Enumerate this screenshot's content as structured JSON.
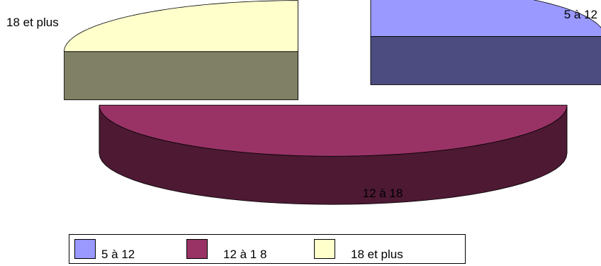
{
  "chart_data": {
    "type": "pie",
    "style": "3d-exploded",
    "categories": [
      "5 à 12",
      "12 à 18",
      "18 et plus"
    ],
    "values": [
      25,
      50,
      25
    ],
    "colors": {
      "top": [
        "#9999ff",
        "#993366",
        "#ffffcc"
      ],
      "side": [
        "#4c4c80",
        "#4d1933",
        "#808066"
      ]
    },
    "slice_labels": [
      "5 à 12",
      "12 à 18",
      "18 et plus"
    ],
    "legend": {
      "position": "bottom",
      "entries": [
        "5 à 12",
        "12 à 1 8",
        "18 et plus"
      ]
    }
  }
}
